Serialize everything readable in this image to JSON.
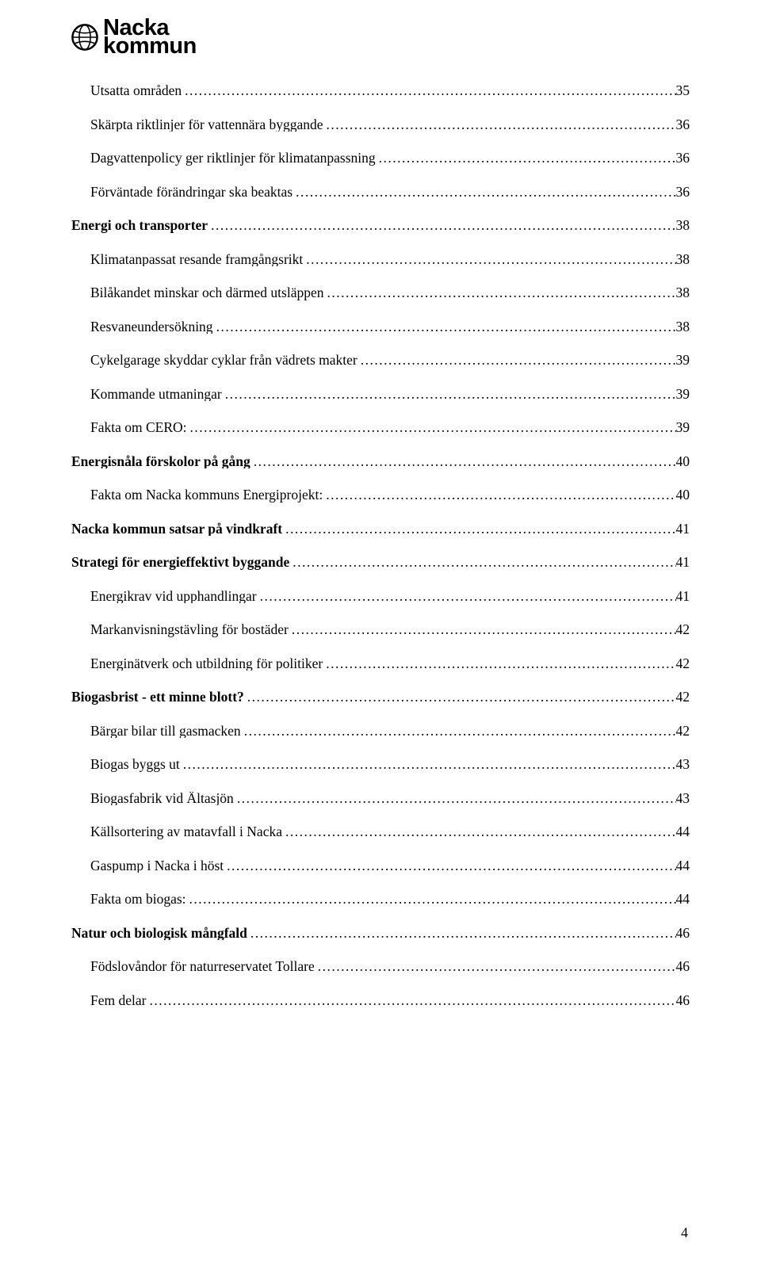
{
  "logo": {
    "line1": "Nacka",
    "line2": "kommun"
  },
  "pageNumber": "4",
  "toc": [
    {
      "level": 1,
      "title": "Utsatta områden",
      "page": "35"
    },
    {
      "level": 1,
      "title": "Skärpta riktlinjer för vattennära byggande",
      "page": "36"
    },
    {
      "level": 1,
      "title": "Dagvattenpolicy ger riktlinjer för klimatanpassning",
      "page": "36"
    },
    {
      "level": 1,
      "title": "Förväntade förändringar ska beaktas",
      "page": "36"
    },
    {
      "level": 0,
      "title": "Energi och transporter",
      "page": "38"
    },
    {
      "level": 1,
      "title": "Klimatanpassat resande framgångsrikt",
      "page": "38"
    },
    {
      "level": 1,
      "title": "Bilåkandet minskar och därmed utsläppen",
      "page": "38"
    },
    {
      "level": 1,
      "title": "Resvaneundersökning",
      "page": "38"
    },
    {
      "level": 1,
      "title": "Cykelgarage skyddar cyklar från vädrets makter",
      "page": "39"
    },
    {
      "level": 1,
      "title": "Kommande utmaningar",
      "page": "39"
    },
    {
      "level": 1,
      "title": "Fakta om CERO:",
      "page": "39"
    },
    {
      "level": 0,
      "title": "Energisnåla förskolor på gång",
      "page": "40"
    },
    {
      "level": 1,
      "title": "Fakta om Nacka kommuns Energiprojekt:",
      "page": "40"
    },
    {
      "level": 0,
      "title": "Nacka kommun satsar på vindkraft",
      "page": "41"
    },
    {
      "level": 0,
      "title": "Strategi för energieffektivt byggande",
      "page": "41"
    },
    {
      "level": 1,
      "title": "Energikrav vid upphandlingar",
      "page": "41"
    },
    {
      "level": 1,
      "title": "Markanvisningstävling för bostäder",
      "page": "42"
    },
    {
      "level": 1,
      "title": "Energinätverk och utbildning för politiker",
      "page": "42"
    },
    {
      "level": 0,
      "title": "Biogasbrist - ett minne blott?",
      "page": "42"
    },
    {
      "level": 1,
      "title": "Bärgar bilar till gasmacken",
      "page": "42"
    },
    {
      "level": 1,
      "title": "Biogas byggs ut",
      "page": "43"
    },
    {
      "level": 1,
      "title": "Biogasfabrik vid Ältasjön",
      "page": "43"
    },
    {
      "level": 1,
      "title": "Källsortering av matavfall i Nacka",
      "page": "44"
    },
    {
      "level": 1,
      "title": "Gaspump i Nacka i höst",
      "page": "44"
    },
    {
      "level": 1,
      "title": "Fakta om biogas:",
      "page": "44"
    },
    {
      "level": 0,
      "title": "Natur och biologisk mångfald",
      "page": "46"
    },
    {
      "level": 1,
      "title": "Födslovåndor för naturreservatet Tollare",
      "page": "46"
    },
    {
      "level": 1,
      "title": "Fem delar",
      "page": "46"
    }
  ]
}
